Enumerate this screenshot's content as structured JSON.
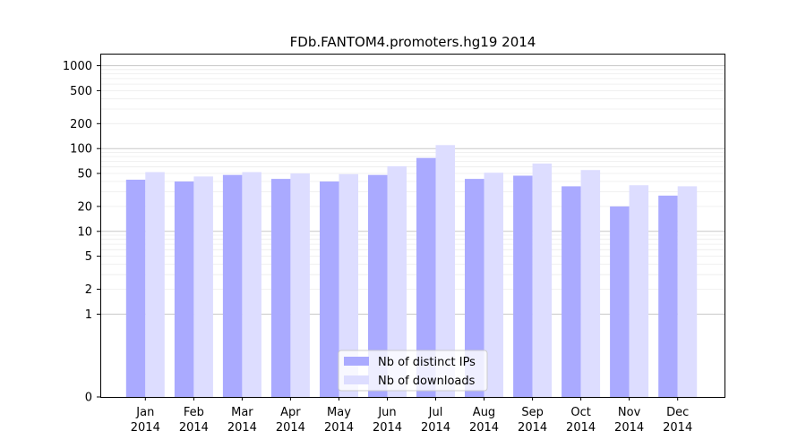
{
  "chart_data": {
    "type": "bar",
    "title": "FDb.FANTOM4.promoters.hg19 2014",
    "xlabel": "",
    "ylabel": "",
    "yscale": "symlog",
    "ylim": [
      0,
      1400
    ],
    "yticks": [
      0,
      1,
      2,
      5,
      10,
      20,
      50,
      100,
      200,
      500,
      1000
    ],
    "ytick_labels": [
      "0",
      "1",
      "2",
      "5",
      "10",
      "20",
      "50",
      "100",
      "200",
      "500",
      "1000"
    ],
    "categories": [
      [
        "Jan",
        "2014"
      ],
      [
        "Feb",
        "2014"
      ],
      [
        "Mar",
        "2014"
      ],
      [
        "Apr",
        "2014"
      ],
      [
        "May",
        "2014"
      ],
      [
        "Jun",
        "2014"
      ],
      [
        "Jul",
        "2014"
      ],
      [
        "Aug",
        "2014"
      ],
      [
        "Sep",
        "2014"
      ],
      [
        "Oct",
        "2014"
      ],
      [
        "Nov",
        "2014"
      ],
      [
        "Dec",
        "2014"
      ]
    ],
    "series": [
      {
        "name": "Nb of distinct IPs",
        "color": "#aaaaff",
        "values": [
          42,
          40,
          48,
          43,
          40,
          48,
          77,
          43,
          47,
          35,
          20,
          27
        ]
      },
      {
        "name": "Nb of downloads",
        "color": "#ddddff",
        "values": [
          52,
          46,
          52,
          50,
          49,
          61,
          110,
          51,
          66,
          55,
          36,
          35
        ]
      }
    ],
    "grid": true,
    "legend_position": "lower-center"
  }
}
